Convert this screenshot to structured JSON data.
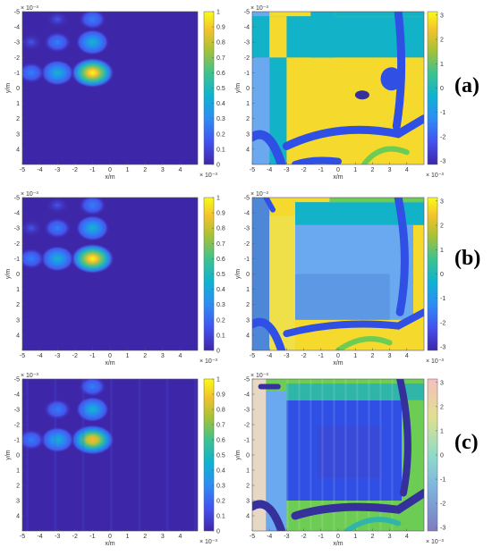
{
  "figure": {
    "panel_labels": [
      "(a)",
      "(b)",
      "(c)"
    ]
  },
  "chart_data": [
    {
      "type": "heatmap",
      "row": "(a)",
      "quantity": "intensity",
      "xlabel": "x/m",
      "ylabel": "y/m",
      "axis_exponent": "× 10⁻³",
      "xlim": [
        -5,
        5
      ],
      "ylim": [
        -5,
        5
      ],
      "x_ticks": [
        "-5",
        "-4",
        "-3",
        "-2",
        "-1",
        "0",
        "1",
        "2",
        "3",
        "4"
      ],
      "y_ticks": [
        "-5",
        "-4",
        "-3",
        "-2",
        "-1",
        "0",
        "1",
        "2",
        "3",
        "4"
      ],
      "colorbar_ticks": [
        "1",
        "0.9",
        "0.8",
        "0.7",
        "0.6",
        "0.5",
        "0.4",
        "0.3",
        "0.2",
        "0.1",
        "0"
      ],
      "clim": [
        0,
        1
      ],
      "colormap": "parula",
      "peaks": [
        {
          "x": -1,
          "y": -1,
          "value": 1.0
        },
        {
          "x": -3,
          "y": -1,
          "value": 0.45
        },
        {
          "x": -4.5,
          "y": -1,
          "value": 0.3
        },
        {
          "x": -1,
          "y": -3,
          "value": 0.45
        },
        {
          "x": -3,
          "y": -3,
          "value": 0.25
        },
        {
          "x": -4.5,
          "y": -3,
          "value": 0.15
        },
        {
          "x": -1,
          "y": -4.5,
          "value": 0.3
        },
        {
          "x": -3,
          "y": -4.5,
          "value": 0.15
        }
      ]
    },
    {
      "type": "heatmap",
      "row": "(a)",
      "quantity": "phase",
      "xlabel": "x/m",
      "ylabel": "y/m",
      "axis_exponent": "× 10⁻³",
      "xlim": [
        -5,
        5
      ],
      "ylim": [
        -5,
        5
      ],
      "x_ticks": [
        "-5",
        "-4",
        "-3",
        "-2",
        "-1",
        "0",
        "1",
        "2",
        "3",
        "4"
      ],
      "y_ticks": [
        "-5",
        "-4",
        "-3",
        "-2",
        "-1",
        "0",
        "1",
        "2",
        "3",
        "4"
      ],
      "colorbar_ticks": [
        "3",
        "2",
        "1",
        "0",
        "-1",
        "-2",
        "-3"
      ],
      "clim": [
        -3.14,
        3.14
      ],
      "colormap": "parula"
    },
    {
      "type": "heatmap",
      "row": "(b)",
      "quantity": "intensity",
      "xlabel": "x/m",
      "ylabel": "y/m",
      "axis_exponent": "× 10⁻³",
      "xlim": [
        -5,
        5
      ],
      "ylim": [
        -5,
        5
      ],
      "x_ticks": [
        "-5",
        "-4",
        "-3",
        "-2",
        "-1",
        "0",
        "1",
        "2",
        "3",
        "4"
      ],
      "y_ticks": [
        "-5",
        "-4",
        "-3",
        "-2",
        "-1",
        "0",
        "1",
        "2",
        "3",
        "4"
      ],
      "colorbar_ticks": [
        "1",
        "0.9",
        "0.8",
        "0.7",
        "0.6",
        "0.5",
        "0.4",
        "0.3",
        "0.2",
        "0.1",
        "0"
      ],
      "clim": [
        0,
        1
      ],
      "colormap": "parula",
      "peaks": [
        {
          "x": -1,
          "y": -1,
          "value": 1.0
        },
        {
          "x": -3,
          "y": -1,
          "value": 0.45
        },
        {
          "x": -4.5,
          "y": -1,
          "value": 0.3
        },
        {
          "x": -1,
          "y": -3,
          "value": 0.45
        },
        {
          "x": -3,
          "y": -3,
          "value": 0.25
        },
        {
          "x": -4.5,
          "y": -3,
          "value": 0.15
        },
        {
          "x": -1,
          "y": -4.5,
          "value": 0.3
        },
        {
          "x": -3,
          "y": -4.5,
          "value": 0.15
        }
      ]
    },
    {
      "type": "heatmap",
      "row": "(b)",
      "quantity": "phase",
      "xlabel": "x/m",
      "ylabel": "y/m",
      "axis_exponent": "× 10⁻³",
      "xlim": [
        -5,
        5
      ],
      "ylim": [
        -5,
        5
      ],
      "x_ticks": [
        "-5",
        "-4",
        "-3",
        "-2",
        "-1",
        "0",
        "1",
        "2",
        "3",
        "4"
      ],
      "y_ticks": [
        "-5",
        "-4",
        "-3",
        "-2",
        "-1",
        "0",
        "1",
        "2",
        "3",
        "4"
      ],
      "colorbar_ticks": [
        "3",
        "2",
        "1",
        "0",
        "-1",
        "-2",
        "-3"
      ],
      "clim": [
        -3.14,
        3.14
      ],
      "colormap": "parula"
    },
    {
      "type": "heatmap",
      "row": "(c)",
      "quantity": "intensity",
      "xlabel": "x/m",
      "ylabel": "y/m",
      "axis_exponent": "× 10⁻³",
      "xlim": [
        -5,
        5
      ],
      "ylim": [
        -5,
        5
      ],
      "x_ticks": [
        "-5",
        "-4",
        "-3",
        "-2",
        "-1",
        "0",
        "1",
        "2",
        "3",
        "4"
      ],
      "y_ticks": [
        "-5",
        "-4",
        "-3",
        "-2",
        "-1",
        "0",
        "1",
        "2",
        "3",
        "4"
      ],
      "colorbar_ticks": [
        "1",
        "0.9",
        "0.8",
        "0.7",
        "0.6",
        "0.5",
        "0.4",
        "0.3",
        "0.2",
        "0.1",
        "0"
      ],
      "clim": [
        0,
        1
      ],
      "colormap": "parula",
      "peaks": [
        {
          "x": -1,
          "y": -1,
          "value": 0.8
        },
        {
          "x": -3,
          "y": -1,
          "value": 0.4
        },
        {
          "x": -4.5,
          "y": -1,
          "value": 0.25
        },
        {
          "x": -1,
          "y": -3,
          "value": 0.4
        },
        {
          "x": -3,
          "y": -3,
          "value": 0.2
        },
        {
          "x": -1,
          "y": -4.5,
          "value": 0.25
        }
      ]
    },
    {
      "type": "heatmap",
      "row": "(c)",
      "quantity": "phase",
      "xlabel": "x/m",
      "ylabel": "y/m",
      "axis_exponent": "× 10⁻³",
      "xlim": [
        -5,
        5
      ],
      "ylim": [
        -5,
        5
      ],
      "x_ticks": [
        "-5",
        "-4",
        "-3",
        "-2",
        "-1",
        "0",
        "1",
        "2",
        "3",
        "4"
      ],
      "y_ticks": [
        "-5",
        "-4",
        "-3",
        "-2",
        "-1",
        "0",
        "1",
        "2",
        "3",
        "4"
      ],
      "colorbar_ticks": [
        "3",
        "2",
        "1",
        "0",
        "-1",
        "-2",
        "-3"
      ],
      "clim": [
        -3.14,
        3.14
      ],
      "colormap": "parula"
    }
  ]
}
